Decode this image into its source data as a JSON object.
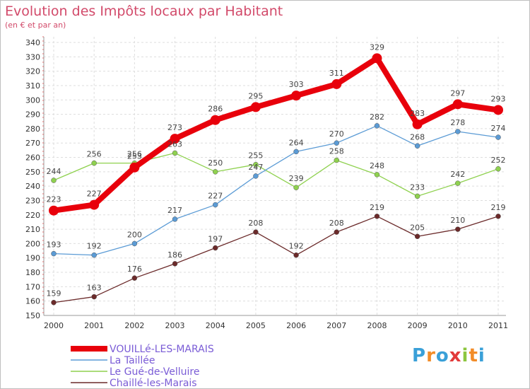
{
  "chart_data": {
    "type": "line",
    "title": "Evolution des Impôts locaux par Habitant",
    "subtitle": "(en € et par an)",
    "x": [
      "2000",
      "2001",
      "2002",
      "2003",
      "2004",
      "2005",
      "2006",
      "2007",
      "2008",
      "2009",
      "2010",
      "2011"
    ],
    "y_ticks": [
      150,
      160,
      170,
      180,
      190,
      200,
      210,
      220,
      230,
      240,
      250,
      260,
      270,
      280,
      290,
      300,
      310,
      320,
      330,
      340
    ],
    "ylim": [
      150,
      340
    ],
    "grid": true,
    "legend_position": "bottom-left",
    "series": [
      {
        "name": "VOUILLé-LES-MARAIS",
        "color": "#e8000b",
        "values": [
          223,
          227,
          253,
          273,
          286,
          295,
          303,
          311,
          329,
          283,
          297,
          293
        ]
      },
      {
        "name": "La Taillée",
        "color": "#5b9bd5",
        "values": [
          193,
          192,
          200,
          217,
          227,
          247,
          264,
          270,
          282,
          268,
          278,
          274
        ]
      },
      {
        "name": "Le Gué-de-Velluire",
        "color": "#8fd14f",
        "values": [
          244,
          256,
          256,
          263,
          250,
          255,
          239,
          258,
          248,
          233,
          242,
          252
        ]
      },
      {
        "name": "Chaillé-les-Marais",
        "color": "#6b2a2a",
        "values": [
          159,
          163,
          176,
          186,
          197,
          208,
          192,
          208,
          219,
          205,
          210,
          219
        ]
      }
    ]
  },
  "logo": {
    "letters": [
      "P",
      "r",
      "o",
      "x",
      "i",
      "t",
      "i"
    ],
    "colors": [
      "#3aa0d8",
      "#f28c28",
      "#3aa0d8",
      "#e23a3a",
      "#8cc63f",
      "#f28c28",
      "#3aa0d8"
    ]
  }
}
